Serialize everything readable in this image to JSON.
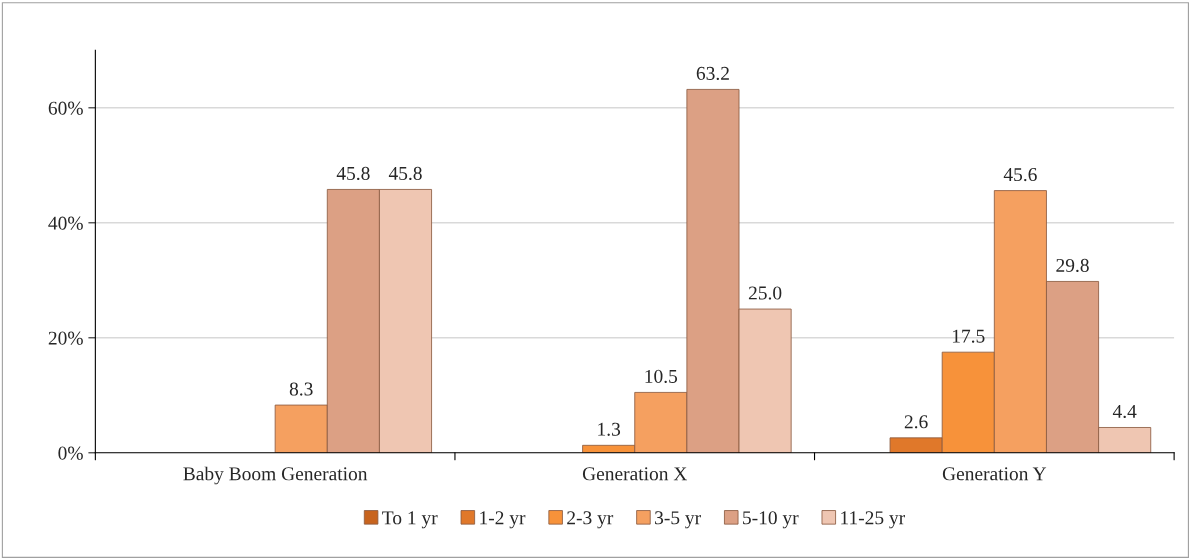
{
  "chart_data": {
    "type": "bar",
    "categories": [
      "Baby Boom Generation",
      "Generation X",
      "Generation Y"
    ],
    "series": [
      {
        "name": "To 1 yr",
        "color": "#c8641e",
        "values": [
          null,
          null,
          null
        ],
        "value_labels": [
          null,
          null,
          null
        ]
      },
      {
        "name": "1-2 yr",
        "color": "#e0782a",
        "values": [
          null,
          null,
          2.6
        ],
        "value_labels": [
          null,
          null,
          "2.6"
        ]
      },
      {
        "name": "2-3 yr",
        "color": "#f7923a",
        "values": [
          null,
          1.3,
          17.5
        ],
        "value_labels": [
          null,
          "1.3",
          "17.5"
        ]
      },
      {
        "name": "3-5 yr",
        "color": "#f5a060",
        "values": [
          8.3,
          10.5,
          45.6
        ],
        "value_labels": [
          "8.3",
          "10.5",
          "45.6"
        ]
      },
      {
        "name": "5-10 yr",
        "color": "#dca084",
        "values": [
          45.8,
          63.2,
          29.8
        ],
        "value_labels": [
          "45.8",
          "63.2",
          "29.8"
        ]
      },
      {
        "name": "11-25 yr",
        "color": "#efc6b2",
        "values": [
          45.8,
          25,
          4.4
        ],
        "value_labels": [
          "45.8",
          "25.0",
          "4.4"
        ]
      }
    ],
    "ylim": [
      0,
      70
    ],
    "yticks": [
      {
        "value": 0,
        "label": "0%"
      },
      {
        "value": 20,
        "label": "20%"
      },
      {
        "value": 40,
        "label": "40%"
      },
      {
        "value": 60,
        "label": "60%"
      }
    ],
    "grid": "y",
    "legend": "bottom"
  }
}
